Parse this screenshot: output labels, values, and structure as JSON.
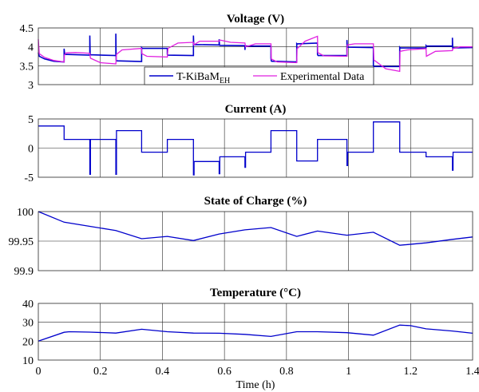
{
  "chart_data": [
    {
      "type": "line",
      "title": "Voltage (V)",
      "xlabel": "",
      "ylabel": "",
      "xlim": [
        0,
        1.4
      ],
      "ylim": [
        3,
        4.5
      ],
      "yticks": [
        "3",
        "3.5",
        "4",
        "4.5"
      ],
      "yticks_v": [
        3,
        3.5,
        4,
        4.5
      ],
      "grid": true,
      "legend": {
        "placement": "bottom-center",
        "entries": [
          {
            "name_main": "T-KiBaM",
            "name_sub": "EH"
          },
          {
            "name_main": "Experimental Data",
            "name_sub": ""
          }
        ]
      },
      "series": [
        {
          "name": "T-KiBaM EH",
          "color": "#0000cc",
          "x": [
            0,
            0.003,
            0.02,
            0.05,
            0.083,
            0.083,
            0.085,
            0.166,
            0.166,
            0.167,
            0.168,
            0.25,
            0.25,
            0.251,
            0.252,
            0.333,
            0.333,
            0.334,
            0.335,
            0.416,
            0.416,
            0.417,
            0.418,
            0.5,
            0.5,
            0.501,
            0.502,
            0.583,
            0.583,
            0.584,
            0.585,
            0.666,
            0.666,
            0.667,
            0.668,
            0.75,
            0.75,
            0.751,
            0.752,
            0.833,
            0.833,
            0.834,
            0.835,
            0.9,
            0.9,
            0.901,
            0.902,
            0.995,
            0.995,
            0.996,
            0.997,
            1.08,
            1.08,
            1.081,
            1.082,
            1.165,
            1.165,
            1.166,
            1.167,
            1.25,
            1.25,
            1.251,
            1.252,
            1.335,
            1.335,
            1.336,
            1.337,
            1.4
          ],
          "y": [
            3.85,
            3.75,
            3.68,
            3.62,
            3.6,
            3.95,
            3.8,
            3.78,
            4.3,
            3.83,
            3.79,
            3.77,
            4.35,
            3.65,
            3.63,
            3.61,
            3.98,
            3.97,
            3.96,
            3.96,
            3.8,
            3.79,
            3.78,
            3.77,
            4.3,
            4.05,
            4.06,
            4.05,
            4.2,
            4.05,
            4.04,
            4.03,
            3.92,
            4.02,
            4.02,
            4.02,
            3.7,
            3.63,
            3.62,
            3.6,
            4.08,
            4.07,
            4.08,
            4.1,
            3.8,
            3.78,
            3.77,
            3.77,
            4.18,
            3.99,
            3.99,
            3.98,
            3.5,
            3.49,
            3.48,
            3.48,
            3.99,
            3.98,
            3.97,
            3.97,
            4.03,
            4.02,
            4.02,
            4.02,
            4.24,
            3.96,
            3.97,
            3.98
          ]
        },
        {
          "name": "Experimental Data",
          "color": "#e020e0",
          "x": [
            0,
            0.003,
            0.02,
            0.05,
            0.083,
            0.084,
            0.09,
            0.12,
            0.166,
            0.168,
            0.2,
            0.25,
            0.252,
            0.27,
            0.333,
            0.334,
            0.35,
            0.416,
            0.418,
            0.45,
            0.5,
            0.501,
            0.52,
            0.583,
            0.585,
            0.62,
            0.666,
            0.668,
            0.7,
            0.75,
            0.751,
            0.77,
            0.833,
            0.834,
            0.86,
            0.9,
            0.901,
            0.92,
            0.995,
            0.996,
            1.02,
            1.08,
            1.082,
            1.12,
            1.165,
            1.166,
            1.19,
            1.25,
            1.251,
            1.28,
            1.335,
            1.336,
            1.36,
            1.4
          ],
          "y": [
            4.2,
            3.82,
            3.72,
            3.64,
            3.6,
            3.78,
            3.84,
            3.85,
            3.83,
            3.7,
            3.58,
            3.55,
            3.8,
            3.92,
            3.96,
            3.82,
            3.75,
            3.73,
            3.96,
            4.1,
            4.12,
            4.05,
            4.15,
            4.15,
            4.18,
            4.12,
            4.1,
            4.0,
            4.08,
            4.08,
            3.68,
            3.6,
            3.58,
            3.95,
            4.15,
            4.28,
            3.85,
            3.76,
            3.75,
            4.05,
            4.08,
            4.08,
            3.65,
            3.42,
            3.35,
            3.88,
            3.92,
            3.95,
            3.75,
            3.88,
            3.9,
            3.95,
            4.0,
            4.0
          ]
        }
      ]
    },
    {
      "type": "line",
      "title": "Current (A)",
      "xlabel": "",
      "ylabel": "",
      "xlim": [
        0,
        1.4
      ],
      "ylim": [
        -5,
        5
      ],
      "yticks": [
        "-5",
        "0",
        "5"
      ],
      "yticks_v": [
        -5,
        0,
        5
      ],
      "grid": true,
      "series": [
        {
          "name": "Current",
          "color": "#0000cc",
          "x": [
            0,
            0.083,
            0.083,
            0.166,
            0.166,
            0.168,
            0.168,
            0.25,
            0.25,
            0.252,
            0.252,
            0.333,
            0.333,
            0.416,
            0.416,
            0.5,
            0.5,
            0.502,
            0.502,
            0.583,
            0.583,
            0.585,
            0.585,
            0.666,
            0.666,
            0.668,
            0.668,
            0.75,
            0.75,
            0.833,
            0.833,
            0.9,
            0.9,
            0.995,
            0.995,
            0.997,
            0.997,
            1.08,
            1.08,
            1.165,
            1.165,
            1.25,
            1.25,
            1.335,
            1.335,
            1.337,
            1.337,
            1.4
          ],
          "y": [
            3.8,
            3.8,
            1.5,
            1.5,
            -4.5,
            -4.5,
            1.5,
            1.5,
            -4.5,
            -4.5,
            3.0,
            3.0,
            -0.7,
            -0.7,
            1.5,
            1.5,
            -4.6,
            -4.6,
            -2.3,
            -2.3,
            -4.4,
            -4.4,
            -1.5,
            -1.5,
            -3.3,
            -3.3,
            -0.7,
            -0.7,
            3.0,
            3.0,
            -2.2,
            -2.2,
            1.5,
            1.5,
            -3.0,
            -3.0,
            -0.7,
            -0.7,
            4.5,
            4.5,
            -0.7,
            -0.7,
            -1.5,
            -1.5,
            -3.8,
            -3.8,
            -0.7,
            -0.7
          ]
        }
      ]
    },
    {
      "type": "line",
      "title": "State of Charge (%)",
      "xlabel": "",
      "ylabel": "",
      "xlim": [
        0,
        1.4
      ],
      "ylim": [
        99.9,
        100
      ],
      "yticks": [
        "99.9",
        "99.95",
        "100"
      ],
      "yticks_v": [
        99.9,
        99.95,
        100
      ],
      "grid": true,
      "series": [
        {
          "name": "State of Charge",
          "color": "#0000cc",
          "x": [
            0,
            0.083,
            0.166,
            0.25,
            0.333,
            0.416,
            0.5,
            0.583,
            0.666,
            0.75,
            0.833,
            0.9,
            0.995,
            1.08,
            1.165,
            1.25,
            1.335,
            1.4
          ],
          "y": [
            100.0,
            99.982,
            99.975,
            99.968,
            99.954,
            99.958,
            99.951,
            99.962,
            99.969,
            99.973,
            99.958,
            99.967,
            99.96,
            99.965,
            99.943,
            99.947,
            99.953,
            99.957
          ]
        }
      ]
    },
    {
      "type": "line",
      "title": "Temperature (°C)",
      "xlabel": "Time (h)",
      "ylabel": "",
      "xlim": [
        0,
        1.4
      ],
      "ylim": [
        10,
        40
      ],
      "yticks": [
        "10",
        "20",
        "30",
        "40"
      ],
      "yticks_v": [
        10,
        20,
        30,
        40
      ],
      "xticks": [
        "0",
        "0.2",
        "0.4",
        "0.6",
        "0.8",
        "1",
        "1.2",
        "1.4"
      ],
      "xticks_v": [
        0,
        0.2,
        0.4,
        0.6,
        0.8,
        1,
        1.2,
        1.4
      ],
      "grid": true,
      "series": [
        {
          "name": "Temperature",
          "color": "#0000cc",
          "x": [
            0,
            0.083,
            0.1,
            0.166,
            0.25,
            0.333,
            0.416,
            0.5,
            0.583,
            0.666,
            0.75,
            0.833,
            0.9,
            0.995,
            1.08,
            1.165,
            1.2,
            1.25,
            1.335,
            1.4
          ],
          "y": [
            20.0,
            24.7,
            25.0,
            24.8,
            24.3,
            26.3,
            25.0,
            24.3,
            24.2,
            23.6,
            22.5,
            25.0,
            25.0,
            24.5,
            23.2,
            28.5,
            28.2,
            26.5,
            25.4,
            24.2
          ]
        }
      ]
    }
  ]
}
